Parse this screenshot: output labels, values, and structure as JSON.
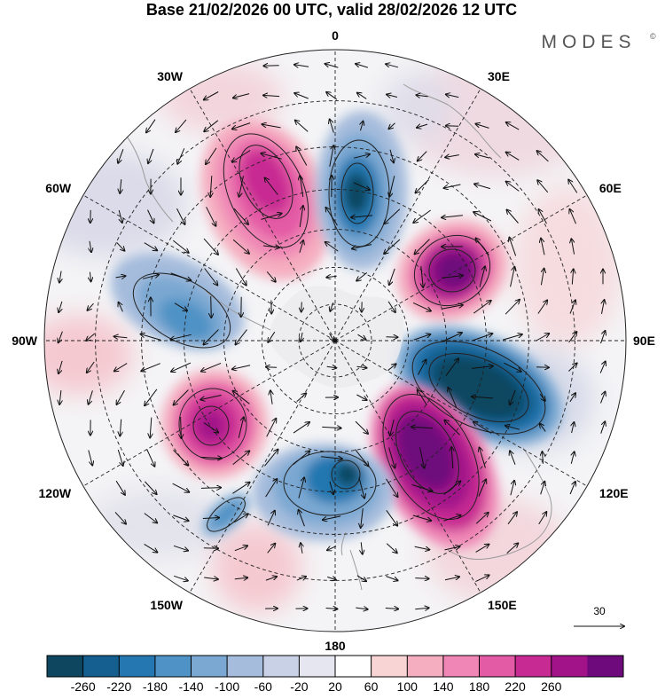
{
  "header": {
    "title": "Base 21/02/2026 00 UTC, valid 28/02/2026 12 UTC",
    "brand": "MODES",
    "brand_mark": "©"
  },
  "map": {
    "projection": "south-polar-stereographic",
    "longitude_labels": [
      {
        "lon": 0,
        "label": "0"
      },
      {
        "lon": 30,
        "label": "30E"
      },
      {
        "lon": 60,
        "label": "60E"
      },
      {
        "lon": 90,
        "label": "90E"
      },
      {
        "lon": 120,
        "label": "120E"
      },
      {
        "lon": 150,
        "label": "150E"
      },
      {
        "lon": 180,
        "label": "180"
      },
      {
        "lon": -150,
        "label": "150W"
      },
      {
        "lon": -120,
        "label": "120W"
      },
      {
        "lon": -90,
        "label": "90W"
      },
      {
        "lon": -60,
        "label": "60W"
      },
      {
        "lon": -30,
        "label": "30W"
      }
    ],
    "latitude_circles_deg": [
      -80,
      -70,
      -60,
      -50,
      -40,
      -30
    ],
    "anomaly_centers": [
      {
        "name": "negative-anomaly-0E",
        "sign": "negative",
        "value": -230
      },
      {
        "name": "positive-anomaly-40E",
        "sign": "positive",
        "value": 250
      },
      {
        "name": "negative-anomaly-100E",
        "sign": "negative",
        "value": -270
      },
      {
        "name": "positive-anomaly-140E",
        "sign": "positive",
        "value": 275
      },
      {
        "name": "negative-anomaly-170W",
        "sign": "negative",
        "value": -240
      },
      {
        "name": "positive-anomaly-125W",
        "sign": "positive",
        "value": 240
      },
      {
        "name": "negative-anomaly-65W",
        "sign": "negative",
        "value": -170
      },
      {
        "name": "positive-anomaly-25W",
        "sign": "positive",
        "value": 240
      }
    ]
  },
  "vector_key": {
    "label": "30"
  },
  "colorbar": {
    "colors": [
      "#0e4660",
      "#155f90",
      "#2477b0",
      "#4f92c5",
      "#7aa8d2",
      "#a5bcdc",
      "#c9d1e6",
      "#e6e6f1",
      "#ffffff",
      "#f8d4d4",
      "#f5aec0",
      "#ef86b5",
      "#e35aa5",
      "#c72a92",
      "#a2138a",
      "#6e0a7c"
    ],
    "tick_labels": [
      "-260",
      "-220",
      "-180",
      "-140",
      "-100",
      "-60",
      "-20",
      "20",
      "60",
      "100",
      "140",
      "180",
      "220",
      "260"
    ]
  }
}
